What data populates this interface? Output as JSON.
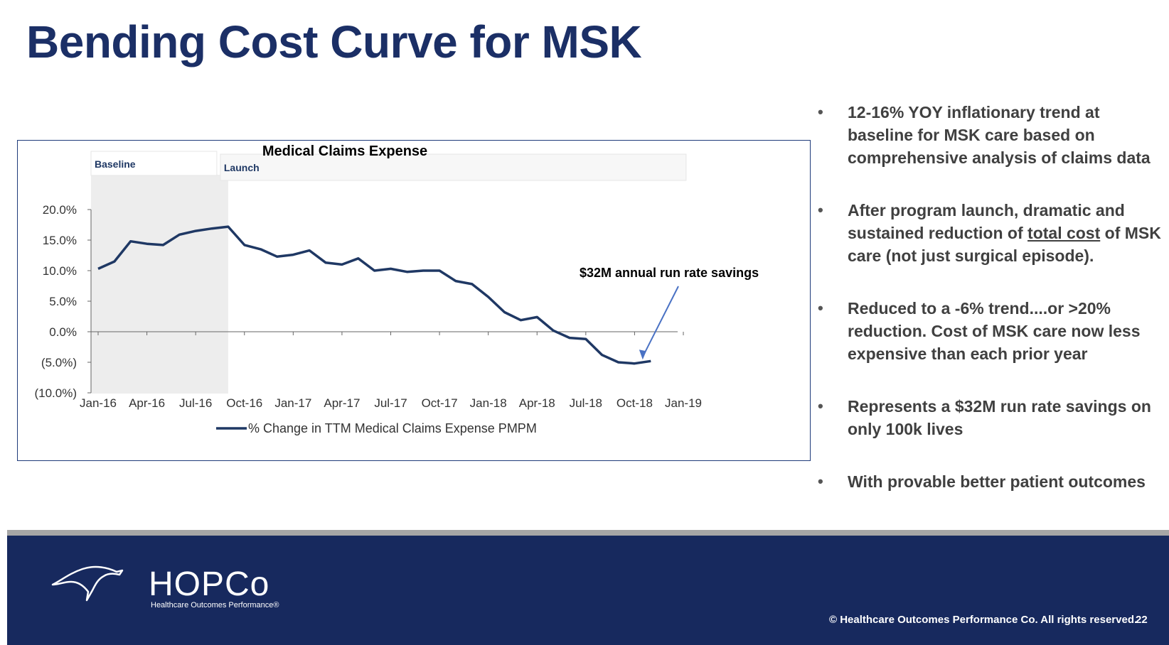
{
  "slide": {
    "title": "Bending Cost Curve for MSK",
    "bullets": [
      "12-16% YOY inflationary trend at baseline for MSK care based on comprehensive analysis of claims data",
      "After program launch, dramatic and sustained reduction of total cost of MSK care (not just surgical episode).",
      "Reduced to a -6% trend....or >20% reduction.  Cost of MSK care now less expensive than each prior year",
      "Represents a $32M run rate savings on only 100k lives",
      "With provable better patient outcomes"
    ],
    "bullet_symbol": "•"
  },
  "footer": {
    "logo_text": "HOPCo",
    "logo_subtitle": "Healthcare Outcomes Performance®",
    "copyright": "© Healthcare Outcomes Performance Co. All rights reserved.",
    "page_number": "22",
    "background_color": "#17295e"
  },
  "chart_data": {
    "type": "line",
    "title": "Medical Claims Expense",
    "xlabel": "",
    "ylabel": "",
    "ylim": [
      -10,
      20
    ],
    "yticks": [
      20,
      15,
      10,
      5,
      0,
      -5,
      -10
    ],
    "ytick_labels": [
      "20.0%",
      "15.0%",
      "10.0%",
      "5.0%",
      "0.0%",
      "(5.0%)",
      "(10.0%)"
    ],
    "xtick_labels": [
      "Jan-16",
      "Apr-16",
      "Jul-16",
      "Oct-16",
      "Jan-17",
      "Apr-17",
      "Jul-17",
      "Oct-17",
      "Jan-18",
      "Apr-18",
      "Jul-18",
      "Oct-18",
      "Jan-19"
    ],
    "x_range_months": [
      0,
      36
    ],
    "series": [
      {
        "name": "% Change in TTM Medical Claims Expense PMPM",
        "color": "#1f3864",
        "x": [
          0,
          1,
          2,
          3,
          4,
          5,
          6,
          7,
          8,
          9,
          10,
          11,
          12,
          13,
          14,
          15,
          16,
          17,
          18,
          19,
          20,
          21,
          22,
          23,
          24,
          25,
          26,
          27,
          28,
          29,
          30,
          31,
          32,
          33,
          34
        ],
        "values": [
          10.3,
          11.5,
          14.8,
          14.4,
          14.2,
          15.9,
          16.5,
          16.9,
          17.2,
          14.2,
          13.5,
          12.3,
          12.6,
          13.3,
          11.3,
          11.0,
          12.0,
          10.0,
          10.3,
          9.8,
          10.0,
          10.0,
          8.3,
          7.8,
          5.7,
          3.2,
          1.9,
          2.4,
          0.2,
          -1.0,
          -1.2,
          -3.8,
          -5.0,
          -5.2,
          -4.8
        ]
      }
    ],
    "shaded_region": {
      "label": "Baseline",
      "x_start": 0,
      "x_end": 8,
      "color": "#ededed"
    },
    "launch_label": "Launch",
    "launch_x": 8,
    "annotation": {
      "text": "$32M annual run rate savings",
      "arrow_target_x": 33.5,
      "arrow_target_y": -4.8
    },
    "legend": "bottom-center",
    "grid": false
  }
}
